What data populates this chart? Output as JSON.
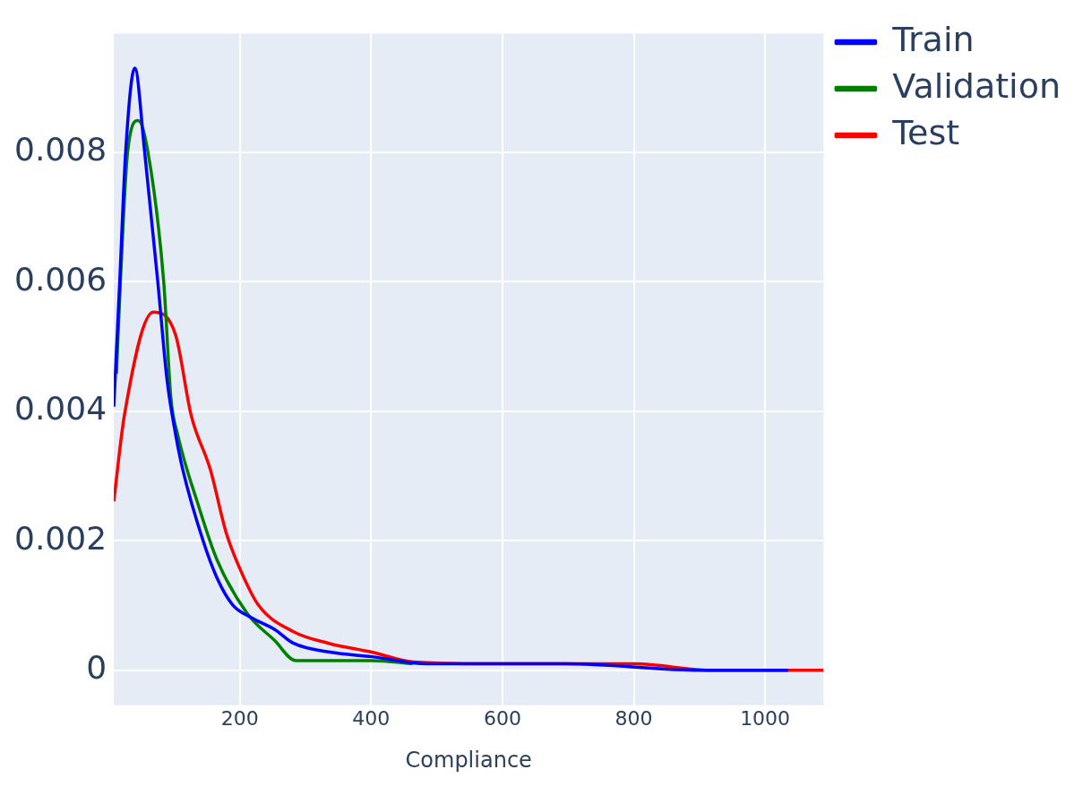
{
  "chart_data": {
    "type": "line",
    "xlabel": "Compliance",
    "xlim": [
      8,
      1089
    ],
    "xticks": [
      200,
      400,
      600,
      800,
      {
        "value": 1000,
        "label": "1000"
      }
    ],
    "ylim": [
      -0.00054,
      0.00983
    ],
    "yticks": [
      0,
      0.002,
      0.004,
      0.006,
      0.008
    ],
    "grid": true,
    "legend": "top right",
    "marker": "none",
    "line_style": "solid",
    "series": [
      {
        "name": "Train",
        "color": "#0000ff",
        "x": [
          8,
          17,
          26,
          40,
          55,
          75,
          89,
          102,
          113,
          144,
          165,
          189,
          218,
          253,
          281,
          337,
          401,
          485,
          696,
          907,
          1035
        ],
        "values": [
          0.00407,
          0.006,
          0.008,
          0.0093,
          0.008,
          0.006,
          0.00449,
          0.00365,
          0.0031,
          0.002,
          0.00143,
          0.00101,
          0.00081,
          0.00063,
          0.00042,
          0.00028,
          0.00021,
          0.0001,
          0.0001,
          0,
          0
        ]
      },
      {
        "name": "Validation",
        "color": "#008000",
        "x": [
          12,
          18,
          29,
          45,
          60,
          84,
          95,
          105,
          137,
          165,
          211,
          253,
          285,
          401,
          463
        ],
        "values": [
          0.00458,
          0.006,
          0.008,
          0.00849,
          0.008,
          0.006,
          0.0042,
          0.00365,
          0.00254,
          0.00171,
          0.00088,
          0.00046,
          0.00015,
          0.00015,
          0.0001
        ]
      },
      {
        "name": "Test",
        "color": "#ff0000",
        "x": [
          8,
          24,
          68,
          102,
          126,
          155,
          179,
          200,
          228,
          281,
          334,
          401,
          464,
          590,
          801,
          918,
          1089
        ],
        "values": [
          0.00261,
          0.00393,
          0.00553,
          0.00518,
          0.00393,
          0.0031,
          0.00213,
          0.00157,
          0.00101,
          0.0006,
          0.00042,
          0.00028,
          0.00013,
          0.0001,
          0.0001,
          0,
          0
        ]
      }
    ]
  }
}
